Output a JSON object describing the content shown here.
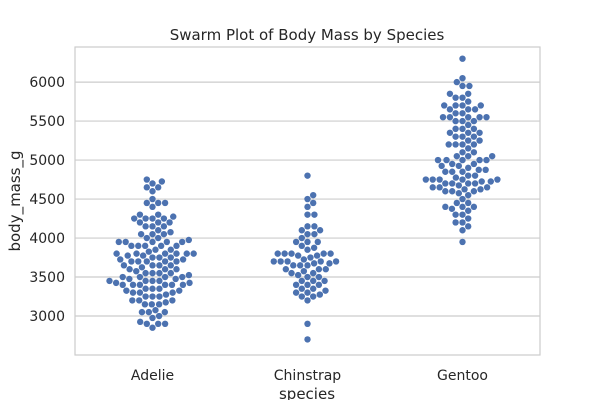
{
  "chart_data": {
    "type": "scatter",
    "style": "swarm",
    "title": "Swarm Plot of Body Mass by Species",
    "xlabel": "species",
    "ylabel": "body_mass_g",
    "categories": [
      "Adelie",
      "Chinstrap",
      "Gentoo"
    ],
    "ylim": [
      2500,
      6450
    ],
    "yticks": [
      3000,
      3500,
      4000,
      4500,
      5000,
      5500,
      6000
    ],
    "grid": "horizontal",
    "point_color": "#4c72b0",
    "grid_color": "#cccccc",
    "frame_color": "#cccccc",
    "series": [
      {
        "category": "Adelie",
        "values": [
          2850,
          2900,
          2900,
          2900,
          2925,
          2975,
          3000,
          3050,
          3050,
          3050,
          3075,
          3150,
          3150,
          3150,
          3175,
          3200,
          3200,
          3200,
          3250,
          3250,
          3250,
          3275,
          3300,
          3300,
          3300,
          3325,
          3325,
          3350,
          3350,
          3350,
          3400,
          3400,
          3400,
          3400,
          3400,
          3400,
          3425,
          3425,
          3450,
          3450,
          3450,
          3450,
          3475,
          3475,
          3500,
          3500,
          3500,
          3500,
          3525,
          3550,
          3550,
          3550,
          3550,
          3575,
          3600,
          3600,
          3600,
          3625,
          3650,
          3650,
          3650,
          3650,
          3700,
          3700,
          3700,
          3700,
          3700,
          3725,
          3725,
          3750,
          3750,
          3750,
          3775,
          3775,
          3800,
          3800,
          3800,
          3800,
          3800,
          3800,
          3825,
          3850,
          3850,
          3900,
          3900,
          3900,
          3900,
          3900,
          3950,
          3950,
          3950,
          3950,
          3950,
          3975,
          4000,
          4000,
          4050,
          4050,
          4050,
          4075,
          4100,
          4150,
          4150,
          4150,
          4200,
          4200,
          4200,
          4250,
          4250,
          4250,
          4250,
          4275,
          4300,
          4300,
          4400,
          4450,
          4450,
          4450,
          4500,
          4600,
          4650,
          4650,
          4700,
          4725,
          4750
        ]
      },
      {
        "category": "Chinstrap",
        "values": [
          2700,
          2900,
          3200,
          3250,
          3250,
          3275,
          3300,
          3300,
          3325,
          3350,
          3350,
          3400,
          3400,
          3400,
          3450,
          3450,
          3450,
          3500,
          3500,
          3525,
          3550,
          3550,
          3575,
          3600,
          3600,
          3600,
          3650,
          3650,
          3650,
          3675,
          3675,
          3700,
          3700,
          3700,
          3700,
          3700,
          3725,
          3750,
          3775,
          3775,
          3800,
          3800,
          3800,
          3800,
          3800,
          3850,
          3875,
          3900,
          3950,
          3950,
          3950,
          4000,
          4050,
          4050,
          4100,
          4100,
          4150,
          4150,
          4300,
          4300,
          4400,
          4450,
          4500,
          4550,
          4800
        ]
      },
      {
        "category": "Gentoo",
        "values": [
          3950,
          4100,
          4150,
          4200,
          4200,
          4250,
          4300,
          4300,
          4350,
          4375,
          4400,
          4400,
          4400,
          4450,
          4450,
          4500,
          4550,
          4575,
          4600,
          4600,
          4600,
          4625,
          4625,
          4650,
          4650,
          4650,
          4675,
          4700,
          4700,
          4700,
          4700,
          4725,
          4725,
          4750,
          4750,
          4750,
          4750,
          4750,
          4775,
          4800,
          4800,
          4850,
          4850,
          4850,
          4875,
          4875,
          4900,
          4925,
          4925,
          4950,
          4950,
          5000,
          5000,
          5000,
          5000,
          5000,
          5050,
          5050,
          5050,
          5100,
          5100,
          5150,
          5200,
          5200,
          5200,
          5200,
          5250,
          5250,
          5300,
          5300,
          5300,
          5350,
          5350,
          5350,
          5400,
          5400,
          5400,
          5450,
          5500,
          5500,
          5500,
          5550,
          5550,
          5550,
          5550,
          5550,
          5600,
          5600,
          5650,
          5650,
          5650,
          5700,
          5700,
          5700,
          5700,
          5750,
          5800,
          5800,
          5850,
          5850,
          5950,
          5950,
          6000,
          6050,
          6300
        ]
      }
    ]
  }
}
